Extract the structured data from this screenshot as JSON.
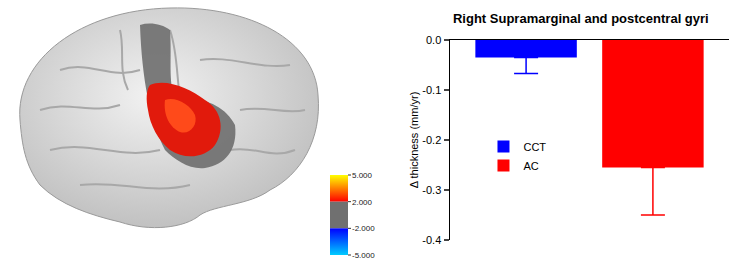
{
  "chart_data": {
    "type": "bar",
    "title": "Right Supramarginal and postcentral gyri",
    "y_label": "Δ thickness (mm/yr)",
    "categories": [
      null,
      null
    ],
    "series": [
      {
        "name": "CCT",
        "color": "#0000ff",
        "values": [
          -0.035,
          null
        ],
        "errors": [
          0.032,
          null
        ]
      },
      {
        "name": "AC",
        "color": "#ff0000",
        "values": [
          null,
          -0.255
        ],
        "errors": [
          null,
          0.095
        ]
      }
    ],
    "ylim": [
      -0.4,
      0
    ],
    "yticks": [
      {
        "value": 0,
        "label": "0.0"
      },
      -0.1,
      -0.2,
      -0.3,
      -0.4
    ],
    "tick_labels": "y",
    "legend": "left"
  },
  "brain_map": {
    "colorbar_range": [
      -5,
      5
    ],
    "colorbar_ticks": [
      {
        "value": 5,
        "label": "5.000"
      },
      {
        "value": 2,
        "label": "2.000"
      },
      {
        "value": -2,
        "label": "-2.000"
      },
      {
        "value": -5,
        "label": "-5.000"
      }
    ]
  }
}
